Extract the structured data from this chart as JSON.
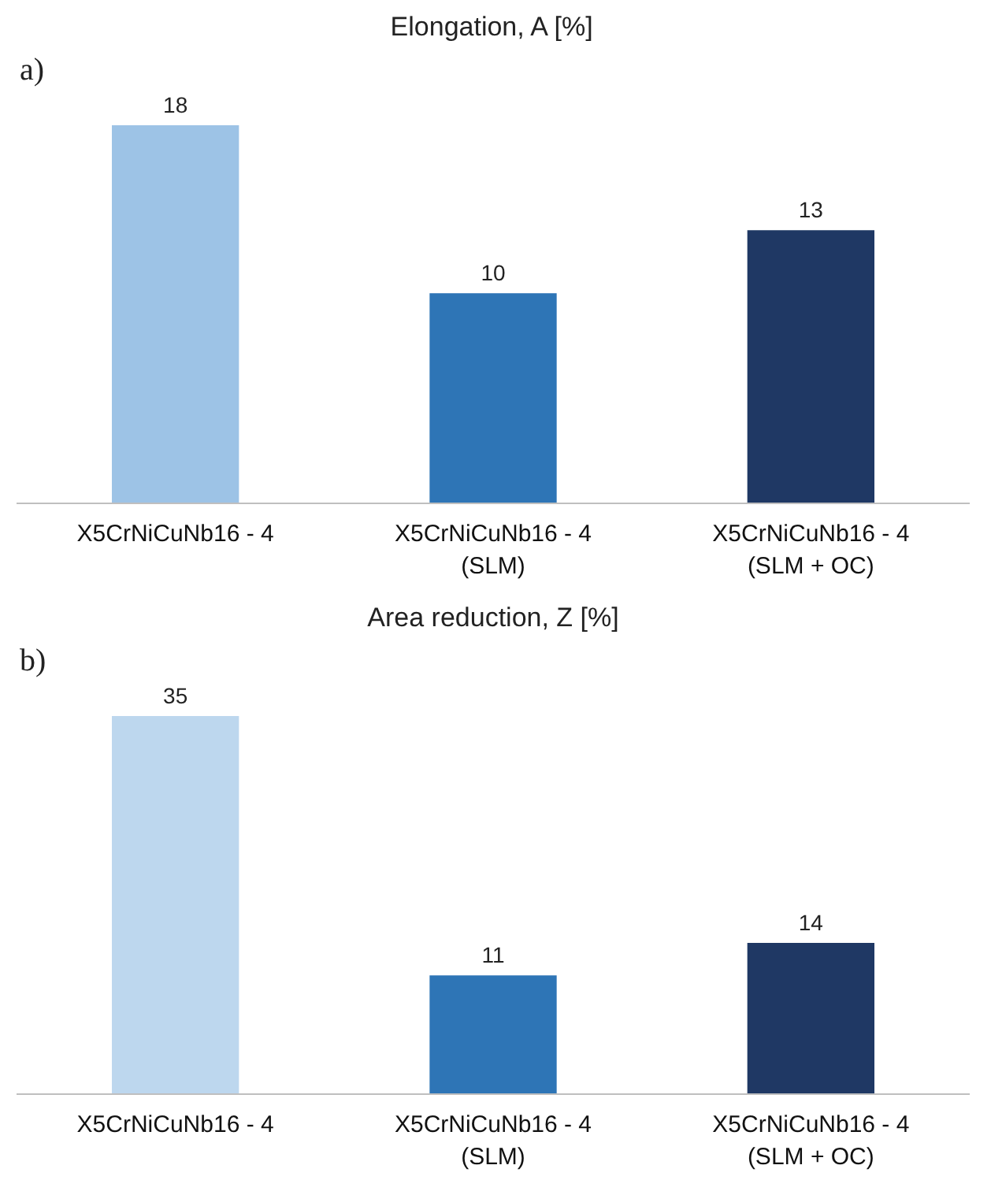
{
  "chart_data": [
    {
      "type": "bar",
      "title": "Elongation, A [%]",
      "annotations": [
        "a)"
      ],
      "categories": [
        "X5CrNiCuNb16 - 4",
        "X5CrNiCuNb16 - 4\n(SLM)",
        "X5CrNiCuNb16 - 4\n(SLM + OC)"
      ],
      "values": [
        18,
        10,
        13
      ],
      "colors": [
        "#9dc3e6",
        "#2e75b6",
        "#1f3864"
      ],
      "data_labels": true,
      "tick_labels": "x"
    },
    {
      "type": "bar",
      "title": "Area reduction, Z [%]",
      "annotations": [
        "b)"
      ],
      "categories": [
        "X5CrNiCuNb16 - 4",
        "X5CrNiCuNb16 - 4\n(SLM)",
        "X5CrNiCuNb16 - 4\n(SLM + OC)"
      ],
      "values": [
        35,
        11,
        14
      ],
      "colors": [
        "#bdd7ee",
        "#2e75b6",
        "#1f3864"
      ],
      "data_labels": true,
      "tick_labels": "x"
    }
  ]
}
